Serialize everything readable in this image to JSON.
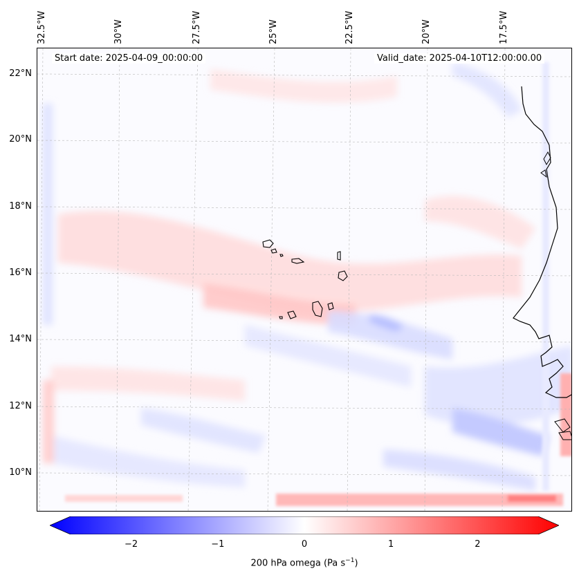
{
  "map": {
    "start_date_label": "Start date: 2025-04-09_00:00:00",
    "valid_date_label": "Valid_date: 2025-04-10T12:00:00.00",
    "lon_labels": [
      "32.5°W",
      "30°W",
      "27.5°W",
      "25°W",
      "22.5°W",
      "20°W",
      "17.5°W"
    ],
    "lat_labels": [
      "22°N",
      "20°N",
      "18°N",
      "16°N",
      "14°N",
      "12°N",
      "10°N"
    ],
    "variable": "200 hPa omega",
    "units_label_main": "200 hPa omega (Pa s",
    "units_label_sup": "−1",
    "units_label_end": ")"
  },
  "colorbar": {
    "ticks": [
      "−2",
      "−1",
      "0",
      "1",
      "2"
    ],
    "tick_values": [
      -2,
      -1,
      0,
      1,
      2
    ],
    "range": [
      -2.7,
      2.7
    ],
    "colors": {
      "negative": "#0000ff",
      "zero": "#ffffff",
      "positive": "#ff0000"
    }
  },
  "colors": {
    "coastline": "#000000",
    "gridline": "#b0b0b0"
  }
}
